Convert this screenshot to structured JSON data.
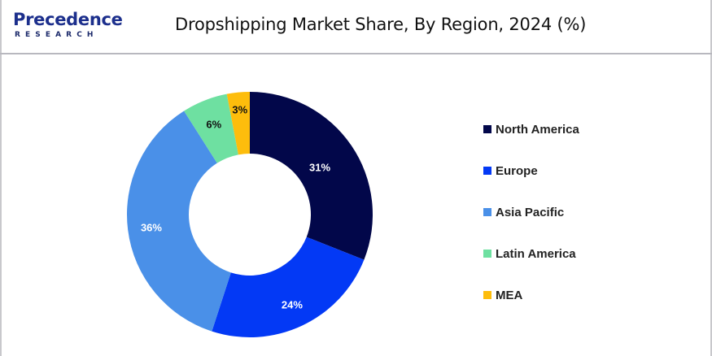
{
  "header": {
    "logo_main": "Precedence",
    "logo_sub": "RESEARCH",
    "title": "Dropshipping Market Share, By Region, 2024 (%)"
  },
  "chart_data": {
    "type": "pie",
    "variant": "donut",
    "title": "Dropshipping Market Share, By Region, 2024 (%)",
    "categories": [
      "North America",
      "Europe",
      "Asia Pacific",
      "Latin America",
      "MEA"
    ],
    "values": [
      31,
      24,
      36,
      6,
      3
    ],
    "labels": [
      "31%",
      "24%",
      "36%",
      "6%",
      "3%"
    ],
    "colors": [
      "#02074a",
      "#0339f5",
      "#4a90e8",
      "#6ee0a1",
      "#fdbd0c"
    ],
    "label_colors": [
      "#ffffff",
      "#ffffff",
      "#ffffff",
      "#111111",
      "#111111"
    ],
    "legend_position": "right",
    "start_angle_deg": 0,
    "direction": "clockwise"
  },
  "legend": {
    "items": [
      {
        "label": "North America",
        "color": "#02074a"
      },
      {
        "label": "Europe",
        "color": "#0339f5"
      },
      {
        "label": "Asia Pacific",
        "color": "#4a90e8"
      },
      {
        "label": "Latin America",
        "color": "#6ee0a1"
      },
      {
        "label": "MEA",
        "color": "#fdbd0c"
      }
    ]
  }
}
